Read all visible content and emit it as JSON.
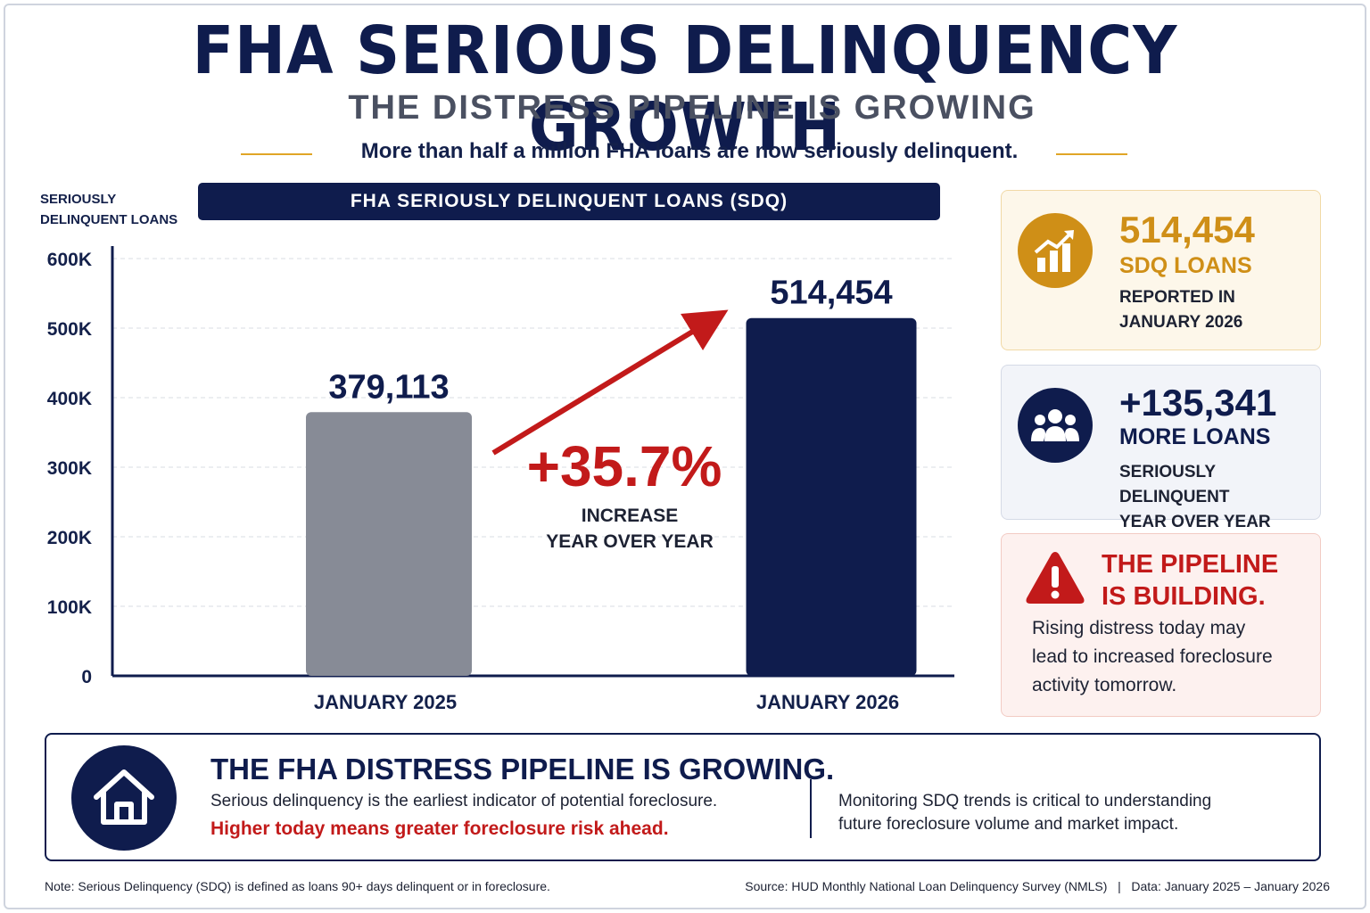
{
  "header": {
    "title": "FHA SERIOUS DELINQUENCY GROWTH",
    "subtitle": "THE DISTRESS PIPELINE IS GROWING",
    "tagline": "More than half a million FHA loans are now seriously delinquent."
  },
  "chart_data": {
    "type": "bar",
    "title": "FHA SERIOUSLY DELINQUENT LOANS (SDQ)",
    "ylabel_line1": "SERIOUSLY",
    "ylabel_line2": "DELINQUENT LOANS",
    "xlabel": "",
    "categories": [
      "JANUARY 2025",
      "JANUARY 2026"
    ],
    "values": [
      379113,
      514454
    ],
    "value_labels": [
      "379,113",
      "514,454"
    ],
    "ylim": [
      0,
      600000
    ],
    "yticks": [
      0,
      100000,
      200000,
      300000,
      400000,
      500000,
      600000
    ],
    "ytick_labels": [
      "0",
      "100K",
      "200K",
      "300K",
      "400K",
      "500K",
      "600K"
    ],
    "grid": true,
    "bar_colors": [
      "#878b96",
      "#0f1c4d"
    ],
    "annotation": {
      "value": "+35.7%",
      "line1": "INCREASE",
      "line2": "YEAR OVER YEAR",
      "color": "#c21a1a"
    }
  },
  "cards": {
    "sdq": {
      "icon": "chart-growth-icon",
      "number": "514,454",
      "title": "SDQ LOANS",
      "line1": "REPORTED IN",
      "line2": "JANUARY 2026",
      "color": "#cf8f17"
    },
    "more": {
      "icon": "users-icon",
      "number": "+135,341",
      "title": "MORE LOANS",
      "line1": "SERIOUSLY DELINQUENT",
      "line2": "YEAR OVER YEAR",
      "color": "#0f1c4d"
    },
    "pipeline": {
      "icon": "warning-icon",
      "title1": "THE PIPELINE",
      "title2": "IS BUILDING.",
      "line1": "Rising distress today may",
      "line2": "lead to increased foreclosure",
      "line3": "activity tomorrow.",
      "color": "#c21a1a"
    }
  },
  "bottom": {
    "icon": "house-icon",
    "title": "THE FHA DISTRESS PIPELINE IS GROWING.",
    "line1": "Serious delinquency is the earliest indicator of potential foreclosure.",
    "line2": "Higher today means greater foreclosure risk ahead.",
    "right1": "Monitoring SDQ trends is critical to understanding",
    "right2": "future foreclosure volume and market impact."
  },
  "footer": {
    "note": "Note: Serious Delinquency (SDQ) is defined as loans 90+ days delinquent or in foreclosure.",
    "source": "Source: HUD Monthly National Loan Delinquency Survey (NMLS)   |   Data: January 2025 – January 2026"
  }
}
